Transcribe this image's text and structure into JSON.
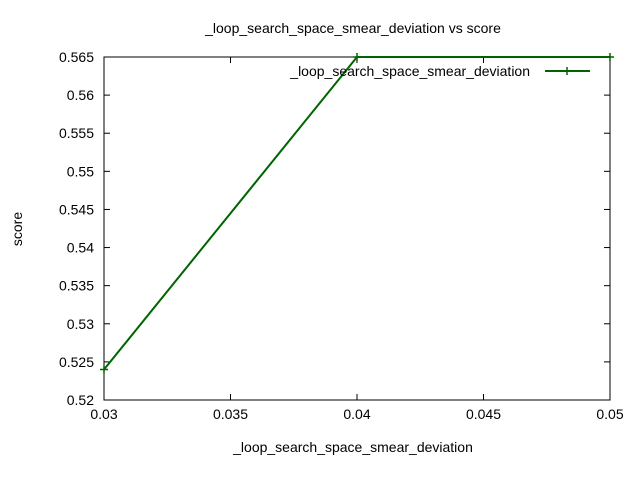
{
  "chart_data": {
    "type": "line",
    "title": "_loop_search_space_smear_deviation vs score",
    "xlabel": "_loop_search_space_smear_deviation",
    "ylabel": "score",
    "xlim": [
      0.03,
      0.05
    ],
    "ylim": [
      0.52,
      0.565
    ],
    "x_ticks": [
      "0.03",
      "0.035",
      "0.04",
      "0.045",
      "0.05"
    ],
    "y_ticks": [
      "0.52",
      "0.525",
      "0.53",
      "0.535",
      "0.54",
      "0.545",
      "0.55",
      "0.555",
      "0.56",
      "0.565"
    ],
    "grid": false,
    "legend_position": "top-right",
    "series": [
      {
        "name": "_loop_search_space_smear_deviation",
        "color": "#006400",
        "marker": "plus",
        "x": [
          0.03,
          0.04,
          0.05
        ],
        "y": [
          0.524,
          0.565,
          0.565
        ]
      }
    ]
  }
}
